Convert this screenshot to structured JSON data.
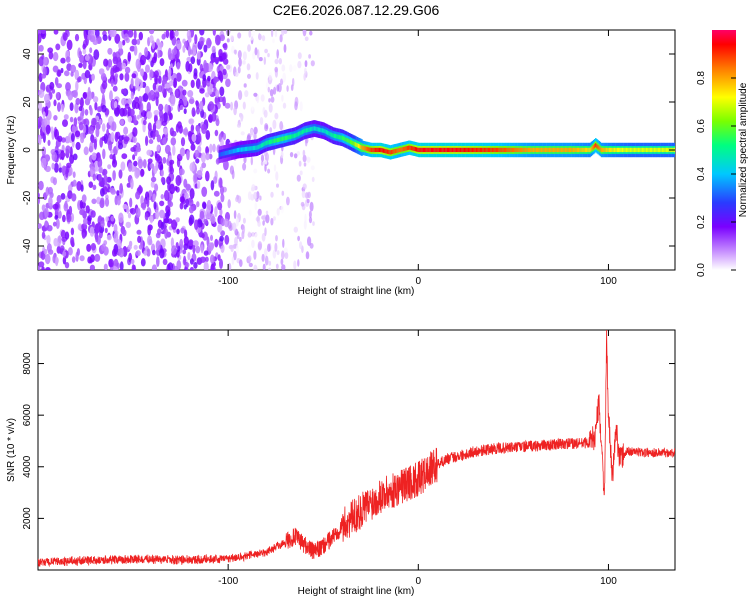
{
  "page": {
    "title": "C2E6.2026.087.12.29.G06"
  },
  "chart_data": [
    {
      "type": "heatmap",
      "xlabel": "Height of straight line (km)",
      "ylabel": "Frequency (Hz)",
      "xlim": [
        -200,
        135
      ],
      "ylim": [
        -50,
        50
      ],
      "xticks": [
        -100,
        0,
        100
      ],
      "yticks": [
        -40,
        -20,
        0,
        20,
        40
      ],
      "xtick_labels": [
        "-100",
        "0",
        "100"
      ],
      "ytick_labels": [
        "-40",
        "-20",
        "0",
        "20",
        "40"
      ],
      "colorbar": {
        "label": "Normalized spectral amplitude",
        "range": [
          0,
          1
        ],
        "ticks": [
          0.0,
          0.2,
          0.4,
          0.6,
          0.8
        ],
        "tick_labels": [
          "0.0",
          "0.2",
          "0.4",
          "0.6",
          "0.8"
        ]
      },
      "ridge": {
        "x": [
          -105,
          -95,
          -85,
          -80,
          -75,
          -70,
          -65,
          -60,
          -55,
          -50,
          -45,
          -40,
          -35,
          -30,
          -25,
          -20,
          -15,
          -10,
          -5,
          0,
          20,
          40,
          60,
          80,
          90,
          93,
          96,
          100,
          110,
          120,
          135
        ],
        "freq": [
          -2,
          0,
          1,
          3,
          4,
          5,
          6,
          8,
          9,
          8,
          6,
          5,
          3,
          1,
          0,
          0,
          -1,
          0,
          1,
          0,
          0,
          0,
          0,
          0,
          0,
          2,
          0,
          0,
          0,
          0,
          0
        ],
        "amplitude": [
          0.3,
          0.4,
          0.45,
          0.5,
          0.55,
          0.55,
          0.5,
          0.5,
          0.45,
          0.45,
          0.5,
          0.55,
          0.6,
          0.8,
          0.9,
          0.95,
          0.9,
          0.85,
          0.9,
          0.95,
          0.95,
          0.9,
          0.8,
          0.8,
          0.75,
          0.9,
          0.8,
          0.75,
          0.7,
          0.7,
          0.7
        ]
      },
      "scatter_regions": [
        {
          "x_range": [
            -200,
            -100
          ],
          "density": "high",
          "amplitude": [
            0.05,
            0.2
          ]
        },
        {
          "x_range": [
            -100,
            -55
          ],
          "density": "low",
          "amplitude": [
            0.0,
            0.1
          ]
        }
      ]
    },
    {
      "type": "line",
      "xlabel": "Height of straight line (km)",
      "ylabel": "SNR (10 * v/v)",
      "xlim": [
        -200,
        135
      ],
      "ylim": [
        0,
        9300
      ],
      "xticks": [
        -100,
        0,
        100
      ],
      "yticks": [
        2000,
        4000,
        6000,
        8000
      ],
      "xtick_labels": [
        "-100",
        "0",
        "100"
      ],
      "ytick_labels": [
        "2000",
        "4000",
        "6000",
        "8000"
      ],
      "color": "#ee2222",
      "series": [
        {
          "name": "SNR",
          "x": [
            -200,
            -180,
            -160,
            -140,
            -120,
            -100,
            -90,
            -80,
            -75,
            -70,
            -65,
            -60,
            -55,
            -50,
            -45,
            -40,
            -35,
            -30,
            -25,
            -20,
            -15,
            -10,
            -5,
            0,
            5,
            10,
            15,
            20,
            30,
            40,
            50,
            60,
            70,
            80,
            85,
            90,
            93,
            95,
            97,
            98,
            99,
            100,
            102,
            104,
            106,
            110,
            120,
            135
          ],
          "y": [
            300,
            350,
            400,
            420,
            380,
            450,
            550,
            700,
            900,
            1100,
            1300,
            1000,
            700,
            900,
            1300,
            1700,
            2000,
            2300,
            2600,
            2900,
            3000,
            3200,
            3400,
            3500,
            3800,
            4100,
            4300,
            4400,
            4600,
            4700,
            4750,
            4800,
            4850,
            4900,
            4900,
            4950,
            5200,
            6500,
            4000,
            2800,
            9000,
            6000,
            3500,
            5500,
            4300,
            4600,
            4550,
            4550
          ]
        }
      ]
    }
  ]
}
